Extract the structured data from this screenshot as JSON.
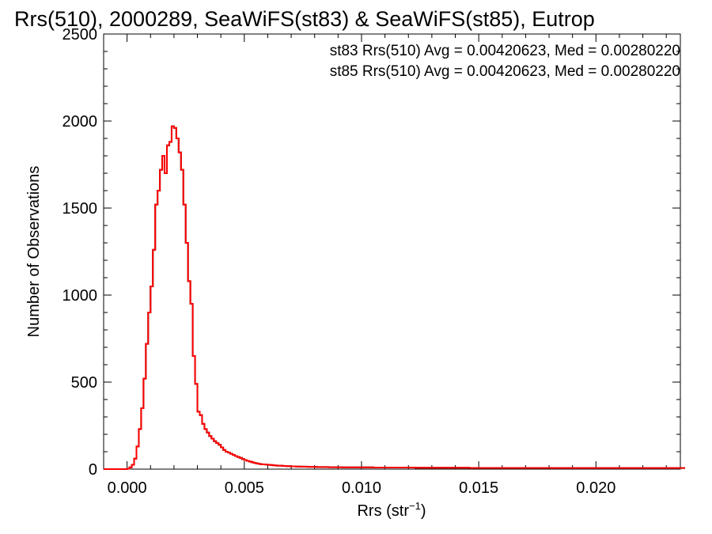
{
  "chart_data": {
    "type": "histogram",
    "title": "Rrs(510), 2000289, SeaWiFS(st83) & SeaWiFS(st85), Eutrop",
    "xlabel": "Rrs (str",
    "xlabel_exp": "−1",
    "xlabel_close": ")",
    "ylabel": "Number of Observations",
    "xlim": [
      -0.001,
      0.0236
    ],
    "ylim": [
      0,
      2500
    ],
    "x_ticks": [
      0.0,
      0.005,
      0.01,
      0.015,
      0.02
    ],
    "x_tick_labels": [
      "0.000",
      "0.005",
      "0.010",
      "0.015",
      "0.020"
    ],
    "y_ticks": [
      0,
      500,
      1000,
      1500,
      2000,
      2500
    ],
    "y_tick_labels": [
      "0",
      "500",
      "1000",
      "1500",
      "2000",
      "2500"
    ],
    "bin_width": 0.0001,
    "bin_start": -0.001,
    "legend_placement": "top-right",
    "annotations": [
      {
        "text": "st83 Rrs(510) Avg = 0.00420623, Med = 0.00280220",
        "color": "#000000"
      },
      {
        "text": "st85 Rrs(510) Avg = 0.00420623, Med = 0.00280220",
        "color": "#ff0000"
      }
    ],
    "series": [
      {
        "name": "st83",
        "color": "#000000"
      },
      {
        "name": "st85",
        "color": "#ff0000"
      }
    ],
    "counts": [
      0,
      0,
      0,
      0,
      0,
      0,
      0,
      0,
      0,
      0,
      2,
      10,
      25,
      60,
      130,
      230,
      350,
      520,
      720,
      900,
      1050,
      1260,
      1520,
      1600,
      1720,
      1800,
      1700,
      1860,
      1880,
      1970,
      1960,
      1900,
      1820,
      1720,
      1520,
      1300,
      1080,
      950,
      650,
      490,
      330,
      310,
      260,
      230,
      210,
      190,
      175,
      160,
      150,
      140,
      125,
      110,
      100,
      95,
      88,
      82,
      75,
      70,
      65,
      58,
      52,
      48,
      44,
      40,
      36,
      33,
      30,
      28,
      27,
      26,
      25,
      24,
      22,
      21,
      20,
      20,
      19,
      18,
      17,
      17,
      16,
      16,
      15,
      15,
      14,
      14,
      14,
      13,
      13,
      13,
      13,
      12,
      12,
      12,
      12,
      12,
      11,
      11,
      11,
      11,
      11,
      11,
      10,
      10,
      10,
      10,
      10,
      10,
      10,
      10,
      10,
      10,
      10,
      10,
      10,
      9,
      9,
      9,
      9,
      9,
      9,
      9,
      9,
      9,
      9,
      9,
      9,
      9,
      9,
      9,
      9,
      9,
      9,
      8,
      8,
      8,
      8,
      8,
      8,
      8,
      8,
      8,
      8,
      8,
      8,
      8,
      8,
      8,
      8,
      8,
      8,
      8,
      8,
      8,
      8,
      8,
      7,
      7,
      7,
      7,
      7,
      7,
      7,
      7,
      7,
      7,
      7,
      7,
      7,
      7,
      7,
      7,
      7,
      7,
      7,
      7,
      7,
      7,
      7,
      7,
      7,
      7,
      7,
      7,
      7,
      7,
      7,
      7,
      7,
      7,
      7,
      6,
      6,
      6,
      6,
      6,
      6,
      6,
      6,
      6,
      6,
      6,
      6,
      6,
      6,
      6,
      6,
      6,
      6,
      6,
      6,
      6,
      6,
      6,
      6,
      6,
      6,
      6,
      6,
      6,
      6,
      6,
      6,
      6,
      6,
      6,
      6,
      6,
      6,
      6,
      6,
      6,
      6,
      6,
      6,
      6,
      6,
      6,
      6,
      6,
      6,
      6,
      6,
      6,
      6,
      6,
      6,
      6
    ]
  }
}
